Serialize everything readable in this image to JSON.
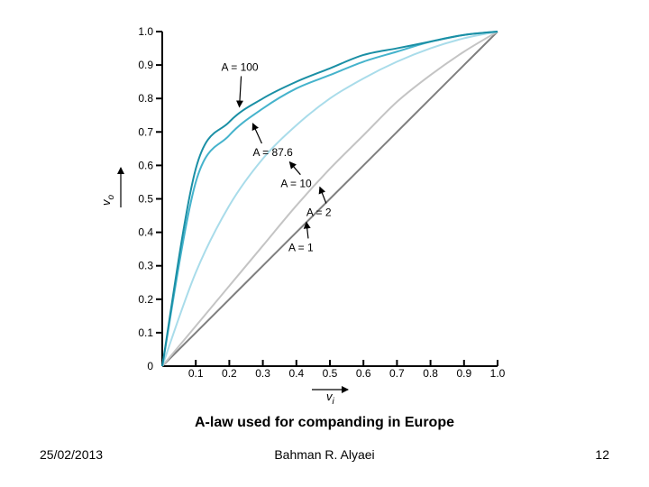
{
  "chart_data": {
    "type": "line",
    "title": "",
    "xlabel": "v_i",
    "ylabel": "v_o",
    "xlim": [
      0,
      1
    ],
    "ylim": [
      0,
      1
    ],
    "x_ticks": [
      "0.1",
      "0.2",
      "0.3",
      "0.4",
      "0.5",
      "0.6",
      "0.7",
      "0.8",
      "0.9",
      "1.0"
    ],
    "y_ticks": [
      "0",
      "0.1",
      "0.2",
      "0.3",
      "0.4",
      "0.5",
      "0.6",
      "0.7",
      "0.8",
      "0.9",
      "1.0"
    ],
    "x": [
      0,
      0.1,
      0.2,
      0.3,
      0.4,
      0.5,
      0.6,
      0.7,
      0.8,
      0.9,
      1.0
    ],
    "series": [
      {
        "name": "A = 1",
        "label": "A = 1",
        "color": "#7f7f7f",
        "values": [
          0,
          0.1,
          0.2,
          0.3,
          0.4,
          0.5,
          0.6,
          0.7,
          0.8,
          0.9,
          1.0
        ]
      },
      {
        "name": "A = 2",
        "label": "A = 2",
        "color": "#c4c4c4",
        "values": [
          0,
          0.12,
          0.24,
          0.36,
          0.48,
          0.59,
          0.69,
          0.79,
          0.87,
          0.94,
          1.0
        ]
      },
      {
        "name": "A = 10",
        "label": "A = 10",
        "color": "#a9dcea",
        "values": [
          0,
          0.28,
          0.48,
          0.62,
          0.72,
          0.8,
          0.86,
          0.91,
          0.95,
          0.98,
          1.0
        ]
      },
      {
        "name": "A = 87.6",
        "label": "A = 87.6",
        "color": "#45b3cc",
        "values": [
          0,
          0.55,
          0.69,
          0.77,
          0.83,
          0.87,
          0.91,
          0.94,
          0.97,
          0.99,
          1.0
        ]
      },
      {
        "name": "A = 100",
        "label": "A = 100",
        "color": "#1a8fa5",
        "values": [
          0,
          0.59,
          0.73,
          0.8,
          0.85,
          0.89,
          0.93,
          0.95,
          0.97,
          0.99,
          1.0
        ]
      }
    ],
    "annotations": [
      {
        "series": "A = 100",
        "text": "A = 100",
        "point": [
          0.23,
          0.775
        ]
      },
      {
        "series": "A = 87.6",
        "text": "A = 87.6",
        "point": [
          0.27,
          0.725
        ]
      },
      {
        "series": "A = 10",
        "text": "A = 10",
        "point": [
          0.38,
          0.61
        ]
      },
      {
        "series": "A = 2",
        "text": "A = 2",
        "point": [
          0.47,
          0.535
        ]
      },
      {
        "series": "A = 1",
        "text": "A = 1",
        "point": [
          0.43,
          0.43
        ]
      }
    ],
    "grid": false,
    "legend": "none (inline arrow annotations)"
  },
  "caption": "A-law used for companding in Europe",
  "footer": {
    "date": "25/02/2013",
    "author": "Bahman R. Alyaei",
    "page": "12"
  }
}
